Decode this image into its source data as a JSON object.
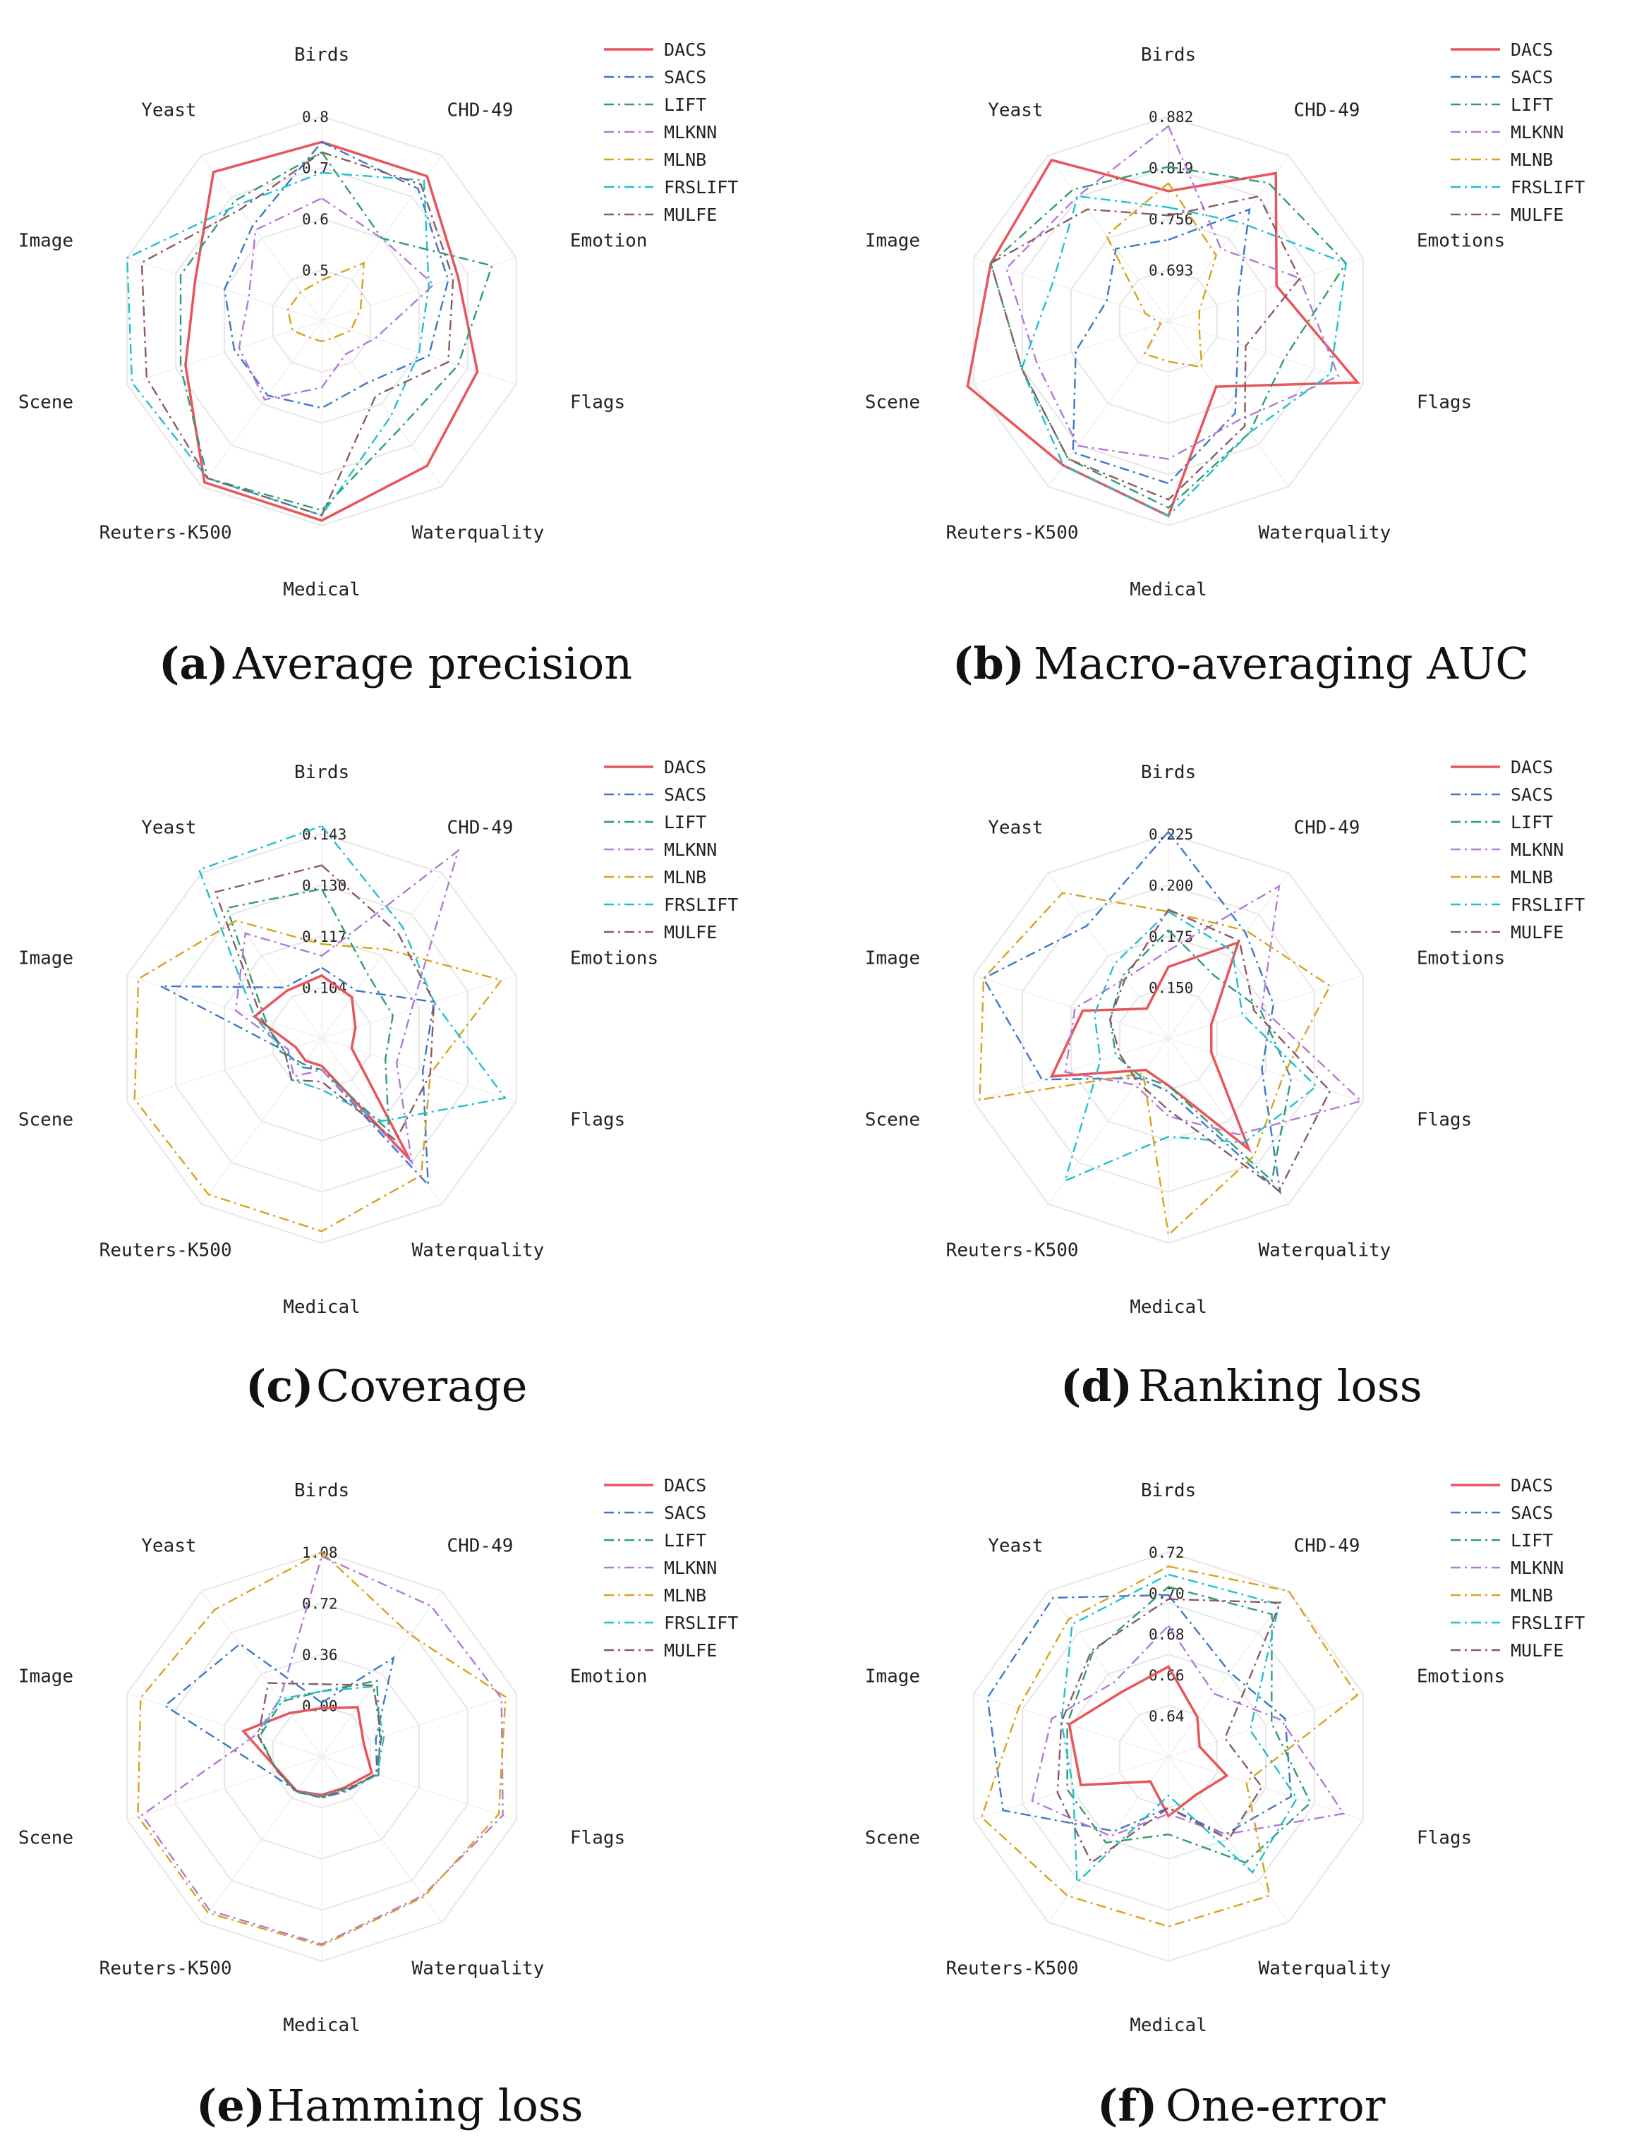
{
  "colors": {
    "DACS": "#e8555a",
    "SACS": "#3b78c8",
    "LIFT": "#2f9e6e",
    "MLKNN": "#b27ad8",
    "MLNB": "#d9a21d",
    "FRSLIFT": "#20c0cf",
    "MULFE": "#8a5a64"
  },
  "chart_data": [
    {
      "type": "radar",
      "panel": "(a)",
      "title": "Average precision",
      "axes": [
        "Birds",
        "CHD-49",
        "Emotion",
        "Flags",
        "Waterquality",
        "Medical",
        "Reuters-K500",
        "Scene",
        "Image",
        "Yeast"
      ],
      "ticks": [
        "0.5",
        "0.6",
        "0.7",
        "0.8"
      ],
      "range": [
        0.4,
        0.8
      ],
      "legend": [
        "DACS",
        "SACS",
        "LIFT",
        "MLKNN",
        "MLNB",
        "FRSLIFT",
        "MULFE"
      ],
      "series": [
        {
          "name": "DACS",
          "values": [
            0.75,
            0.75,
            0.68,
            0.72,
            0.75,
            0.79,
            0.79,
            0.68,
            0.66,
            0.76
          ]
        },
        {
          "name": "SACS",
          "values": [
            0.75,
            0.72,
            0.66,
            0.62,
            0.55,
            0.57,
            0.58,
            0.58,
            0.6,
            0.63
          ]
        },
        {
          "name": "LIFT",
          "values": [
            0.73,
            0.6,
            0.75,
            0.68,
            0.66,
            0.77,
            0.78,
            0.69,
            0.69,
            0.69
          ]
        },
        {
          "name": "MLKNN",
          "values": [
            0.64,
            0.6,
            0.63,
            0.51,
            0.48,
            0.53,
            0.59,
            0.57,
            0.55,
            0.62
          ]
        },
        {
          "name": "MLNB",
          "values": [
            0.48,
            0.54,
            0.48,
            0.46,
            0.44,
            0.44,
            0.44,
            0.46,
            0.47,
            0.47
          ]
        },
        {
          "name": "FRSLIFT",
          "values": [
            0.69,
            0.74,
            0.62,
            0.6,
            0.63,
            0.78,
            0.78,
            0.79,
            0.8,
            0.68
          ]
        },
        {
          "name": "MULFE",
          "values": [
            0.73,
            0.73,
            0.67,
            0.66,
            0.58,
            0.78,
            0.78,
            0.76,
            0.77,
            0.67
          ]
        }
      ]
    },
    {
      "type": "radar",
      "panel": "(b)",
      "title": "Macro-averaging AUC",
      "axes": [
        "Birds",
        "CHD-49",
        "Emotions",
        "Flags",
        "Waterquality",
        "Medical",
        "Reuters-K500",
        "Scene",
        "Image",
        "Yeast"
      ],
      "ticks": [
        "0.693",
        "0.756",
        "0.819",
        "0.882"
      ],
      "range": [
        0.63,
        0.882
      ],
      "legend": [
        "DACS",
        "SACS",
        "LIFT",
        "MLKNN",
        "MLNB",
        "FRSLIFT",
        "MULFE"
      ],
      "series": [
        {
          "name": "DACS",
          "values": [
            0.79,
            0.855,
            0.77,
            0.875,
            0.73,
            0.87,
            0.85,
            0.89,
            0.86,
            0.875
          ]
        },
        {
          "name": "SACS",
          "values": [
            0.73,
            0.8,
            0.72,
            0.72,
            0.77,
            0.83,
            0.83,
            0.75,
            0.71,
            0.74
          ]
        },
        {
          "name": "LIFT",
          "values": [
            0.82,
            0.84,
            0.86,
            0.78,
            0.8,
            0.86,
            0.84,
            0.82,
            0.86,
            0.83
          ]
        },
        {
          "name": "MLKNN",
          "values": [
            0.87,
            0.74,
            0.8,
            0.85,
            0.78,
            0.8,
            0.82,
            0.8,
            0.84,
            0.82
          ]
        },
        {
          "name": "MLNB",
          "values": [
            0.8,
            0.73,
            0.67,
            0.67,
            0.7,
            0.68,
            0.68,
            0.64,
            0.66,
            0.76
          ]
        },
        {
          "name": "FRSLIFT",
          "values": [
            0.77,
            0.78,
            0.86,
            0.84,
            0.8,
            0.87,
            0.85,
            0.82,
            0.78,
            0.82
          ]
        },
        {
          "name": "MULFE",
          "values": [
            0.76,
            0.82,
            0.8,
            0.73,
            0.79,
            0.85,
            0.84,
            0.82,
            0.86,
            0.8
          ]
        }
      ]
    },
    {
      "type": "radar",
      "panel": "(c)",
      "title": "Coverage",
      "axes": [
        "Birds",
        "CHD-49",
        "Emotions",
        "Flags",
        "Waterquality",
        "Medical",
        "Reuters-K500",
        "Scene",
        "Image",
        "Yeast"
      ],
      "ticks": [
        "0.104",
        "0.117",
        "0.130",
        "0.143"
      ],
      "range": [
        0.091,
        0.143
      ],
      "legend": [
        "DACS",
        "SACS",
        "LIFT",
        "MLKNN",
        "MLNB",
        "FRSLIFT",
        "MULFE"
      ],
      "series": [
        {
          "name": "DACS",
          "values": [
            0.107,
            0.104,
            0.1,
            0.099,
            0.129,
            0.098,
            0.098,
            0.098,
            0.109,
            0.106
          ]
        },
        {
          "name": "SACS",
          "values": [
            0.109,
            0.106,
            0.121,
            0.118,
            0.137,
            0.099,
            0.1,
            0.101,
            0.134,
            0.107
          ]
        },
        {
          "name": "LIFT",
          "values": [
            0.129,
            0.111,
            0.11,
            0.108,
            0.12,
            0.099,
            0.099,
            0.102,
            0.106,
            0.132
          ]
        },
        {
          "name": "MLKNN",
          "values": [
            0.112,
            0.15,
            0.115,
            0.111,
            0.13,
            0.099,
            0.103,
            0.1,
            0.114,
            0.124
          ]
        },
        {
          "name": "MLNB",
          "values": [
            0.115,
            0.119,
            0.139,
            0.12,
            0.134,
            0.14,
            0.14,
            0.141,
            0.14,
            0.128
          ]
        },
        {
          "name": "FRSLIFT",
          "values": [
            0.145,
            0.126,
            0.121,
            0.14,
            0.117,
            0.104,
            0.104,
            0.101,
            0.109,
            0.144
          ]
        },
        {
          "name": "MULFE",
          "values": [
            0.135,
            0.124,
            0.121,
            0.12,
            0.123,
            0.102,
            0.104,
            0.101,
            0.107,
            0.137
          ]
        }
      ]
    },
    {
      "type": "radar",
      "panel": "(d)",
      "title": "Ranking loss",
      "axes": [
        "Birds",
        "CHD-49",
        "Emotions",
        "Flags",
        "Waterquality",
        "Medical",
        "Reuters-K500",
        "Scene",
        "Image",
        "Yeast"
      ],
      "ticks": [
        "0.150",
        "0.175",
        "0.200",
        "0.225"
      ],
      "range": [
        0.125,
        0.225
      ],
      "legend": [
        "DACS",
        "SACS",
        "LIFT",
        "MLKNN",
        "MLNB",
        "FRSLIFT",
        "MULFE"
      ],
      "series": [
        {
          "name": "DACS",
          "values": [
            0.16,
            0.183,
            0.147,
            0.147,
            0.192,
            0.148,
            0.144,
            0.185,
            0.169,
            0.143
          ]
        },
        {
          "name": "SACS",
          "values": [
            0.226,
            0.189,
            0.179,
            0.173,
            0.218,
            0.151,
            0.149,
            0.19,
            0.22,
            0.193
          ]
        },
        {
          "name": "LIFT",
          "values": [
            0.178,
            0.163,
            0.172,
            0.188,
            0.211,
            0.148,
            0.148,
            0.152,
            0.155,
            0.163
          ]
        },
        {
          "name": "MLKNN",
          "values": [
            0.168,
            0.217,
            0.173,
            0.224,
            0.183,
            0.163,
            0.153,
            0.178,
            0.173,
            0.161
          ]
        },
        {
          "name": "MLNB",
          "values": [
            0.187,
            0.19,
            0.208,
            0.184,
            0.196,
            0.221,
            0.146,
            0.222,
            0.22,
            0.213
          ]
        },
        {
          "name": "FRSLIFT",
          "values": [
            0.187,
            0.178,
            0.163,
            0.201,
            0.188,
            0.173,
            0.211,
            0.16,
            0.163,
            0.17
          ]
        },
        {
          "name": "MULFE",
          "values": [
            0.188,
            0.184,
            0.169,
            0.208,
            0.217,
            0.16,
            0.151,
            0.15,
            0.155,
            0.161
          ]
        }
      ]
    },
    {
      "type": "radar",
      "panel": "(e)",
      "title": "Hamming loss",
      "axes": [
        "Birds",
        "CHD-49",
        "Emotion",
        "Flags",
        "Waterquality",
        "Medical",
        "Reuters-K500",
        "Scene",
        "Image",
        "Yeast"
      ],
      "ticks": [
        "0.00",
        "0.36",
        "0.72",
        "1.08"
      ],
      "range": [
        -0.36,
        1.08
      ],
      "legend": [
        "DACS",
        "SACS",
        "LIFT",
        "MLKNN",
        "MLNB",
        "FRSLIFT",
        "MULFE"
      ],
      "series": [
        {
          "name": "DACS",
          "values": [
            -0.02,
            0.07,
            -0.05,
            0.01,
            -0.09,
            -0.09,
            -0.06,
            -0.04,
            0.22,
            0.02
          ]
        },
        {
          "name": "SACS",
          "values": [
            0.02,
            0.5,
            0.04,
            0.05,
            -0.06,
            -0.07,
            -0.06,
            0.02,
            0.8,
            0.62
          ]
        },
        {
          "name": "LIFT",
          "values": [
            0.1,
            0.3,
            0.07,
            0.06,
            -0.08,
            -0.08,
            -0.05,
            -0.03,
            0.1,
            0.12
          ]
        },
        {
          "name": "MLKNN",
          "values": [
            1.05,
            0.95,
            0.97,
            0.98,
            0.85,
            0.96,
            0.98,
            0.97,
            0.13,
            0.14
          ]
        },
        {
          "name": "MLNB",
          "values": [
            1.08,
            0.7,
            1.0,
            0.95,
            0.86,
            0.97,
            1.0,
            1.0,
            0.98,
            0.92
          ]
        },
        {
          "name": "FRSLIFT",
          "values": [
            0.1,
            0.25,
            0.1,
            0.05,
            -0.07,
            -0.08,
            -0.06,
            -0.03,
            0.11,
            0.14
          ]
        },
        {
          "name": "MULFE",
          "values": [
            0.15,
            0.26,
            0.08,
            0.04,
            -0.07,
            -0.07,
            -0.06,
            -0.03,
            0.11,
            0.28
          ]
        }
      ]
    },
    {
      "type": "radar",
      "panel": "(f)",
      "title": "One-error",
      "axes": [
        "Birds",
        "CHD-49",
        "Emotions",
        "Flags",
        "Waterquality",
        "Medical",
        "Reuters-K500",
        "Scene",
        "Image",
        "Yeast"
      ],
      "ticks": [
        "0.64",
        "0.66",
        "0.68",
        "0.70",
        "0.72"
      ],
      "range": [
        0.62,
        0.72
      ],
      "legend": [
        "DACS",
        "SACS",
        "LIFT",
        "MLKNN",
        "MLNB",
        "FRSLIFT",
        "MULFE"
      ],
      "series": [
        {
          "name": "DACS",
          "values": [
            0.664,
            0.644,
            0.636,
            0.65,
            0.643,
            0.649,
            0.635,
            0.665,
            0.671,
            0.659
          ]
        },
        {
          "name": "SACS",
          "values": [
            0.699,
            0.671,
            0.68,
            0.683,
            0.667,
            0.645,
            0.665,
            0.705,
            0.713,
            0.716
          ]
        },
        {
          "name": "LIFT",
          "values": [
            0.703,
            0.706,
            0.673,
            0.693,
            0.684,
            0.658,
            0.672,
            0.672,
            0.672,
            0.683
          ]
        },
        {
          "name": "MLKNN",
          "values": [
            0.684,
            0.658,
            0.678,
            0.71,
            0.667,
            0.648,
            0.668,
            0.69,
            0.68,
            0.665
          ]
        },
        {
          "name": "MLNB",
          "values": [
            0.713,
            0.72,
            0.717,
            0.66,
            0.704,
            0.703,
            0.704,
            0.716,
            0.697,
            0.703
          ]
        },
        {
          "name": "FRSLIFT",
          "values": [
            0.709,
            0.712,
            0.662,
            0.686,
            0.69,
            0.639,
            0.696,
            0.669,
            0.675,
            0.7
          ]
        },
        {
          "name": "MULFE",
          "values": [
            0.697,
            0.713,
            0.649,
            0.668,
            0.67,
            0.645,
            0.684,
            0.677,
            0.675,
            0.684
          ]
        }
      ]
    }
  ]
}
